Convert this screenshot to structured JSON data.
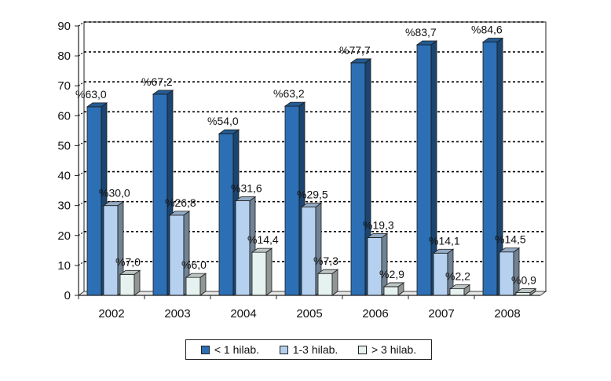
{
  "chart_data": {
    "type": "bar",
    "categories": [
      "2002",
      "2003",
      "2004",
      "2005",
      "2006",
      "2007",
      "2008"
    ],
    "series": [
      {
        "name": "< 1 hilab.",
        "values": [
          63.0,
          67.2,
          54.0,
          63.2,
          77.7,
          83.7,
          84.6
        ],
        "labels": [
          "%63,0",
          "%67,2",
          "%54,0",
          "%63,2",
          "%77,7",
          "%83,7",
          "%84,6"
        ],
        "color": "#2c6fb5"
      },
      {
        "name": "1-3 hilab.",
        "values": [
          30.0,
          26.8,
          31.6,
          29.5,
          19.3,
          14.1,
          14.5
        ],
        "labels": [
          "%30,0",
          "%26,8",
          "%31,6",
          "%29,5",
          "%19,3",
          "%14,1",
          "%14,5"
        ],
        "color": "#b5d1ef"
      },
      {
        "name": "> 3 hilab.",
        "values": [
          7.0,
          6.0,
          14.4,
          7.3,
          2.9,
          2.2,
          0.9
        ],
        "labels": [
          "%7,0",
          "%6,0",
          "%14,4",
          "%7,3",
          "%2,9",
          "%2,2",
          "%0,9"
        ],
        "color": "#e6f2ef"
      }
    ],
    "yticks": [
      "0",
      "10",
      "20",
      "30",
      "40",
      "50",
      "60",
      "70",
      "80",
      "90"
    ],
    "ylim": [
      0,
      90
    ],
    "grid": true,
    "legend_position": "bottom",
    "style": "3d-bar"
  }
}
